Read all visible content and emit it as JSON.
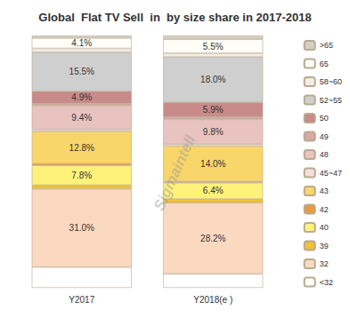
{
  "chart_data": {
    "type": "bar",
    "title": "Global  Flat TV Sell  in  by size share in 2017-2018",
    "annotations": [
      "Sigmaintell"
    ],
    "categories": [
      "Y2017",
      "Y2018(e )"
    ],
    "stacked": true,
    "data_labels": true,
    "tick_labels": "x",
    "legend": "right",
    "ylim": [
      0,
      100
    ],
    "series": [
      {
        "name": "<32",
        "color": "#ffffff",
        "values": [
          8.2,
          5.5
        ],
        "value_labels": [
          null,
          null
        ]
      },
      {
        "name": "32",
        "color": "#fbd9c0",
        "values": [
          31.0,
          28.2
        ],
        "value_labels": [
          "31.0%",
          "28.2%"
        ]
      },
      {
        "name": "39",
        "color": "#f1c232",
        "values": [
          1.5,
          1.5
        ],
        "value_labels": [
          null,
          null
        ]
      },
      {
        "name": "40",
        "color": "#fff27a",
        "values": [
          7.8,
          6.4
        ],
        "value_labels": [
          "7.8%",
          "6.4%"
        ]
      },
      {
        "name": "42",
        "color": "#e99a3c",
        "values": [
          0.7,
          0.6
        ],
        "value_labels": [
          null,
          null
        ]
      },
      {
        "name": "43",
        "color": "#f9d66a",
        "values": [
          12.8,
          14.0
        ],
        "value_labels": [
          "12.8%",
          "14.0%"
        ]
      },
      {
        "name": "45~47",
        "color": "#f6dede",
        "values": [
          0.8,
          0.8
        ],
        "value_labels": [
          null,
          null
        ]
      },
      {
        "name": "48",
        "color": "#e8c3c0",
        "values": [
          9.4,
          9.8
        ],
        "value_labels": [
          "9.4%",
          "9.8%"
        ]
      },
      {
        "name": "49",
        "color": "#d9a8a0",
        "values": [
          0.8,
          0.8
        ],
        "value_labels": [
          null,
          null
        ]
      },
      {
        "name": "50",
        "color": "#c98a8a",
        "values": [
          4.9,
          5.9
        ],
        "value_labels": [
          "4.9%",
          "5.9%"
        ]
      },
      {
        "name": "52~55",
        "color": "#cfcfcf",
        "values": [
          15.5,
          18.0
        ],
        "value_labels": [
          "15.5%",
          "18.0%"
        ]
      },
      {
        "name": "58~60",
        "color": "#f2ede6",
        "values": [
          1.5,
          1.5
        ],
        "value_labels": [
          null,
          null
        ]
      },
      {
        "name": "65",
        "color": "#fffdf8",
        "values": [
          4.1,
          5.5
        ],
        "value_labels": [
          "4.1%",
          "5.5%"
        ]
      },
      {
        "name": ">65",
        "color": "#d6d0c4",
        "values": [
          1.0,
          1.5
        ],
        "value_labels": [
          null,
          null
        ]
      }
    ]
  }
}
